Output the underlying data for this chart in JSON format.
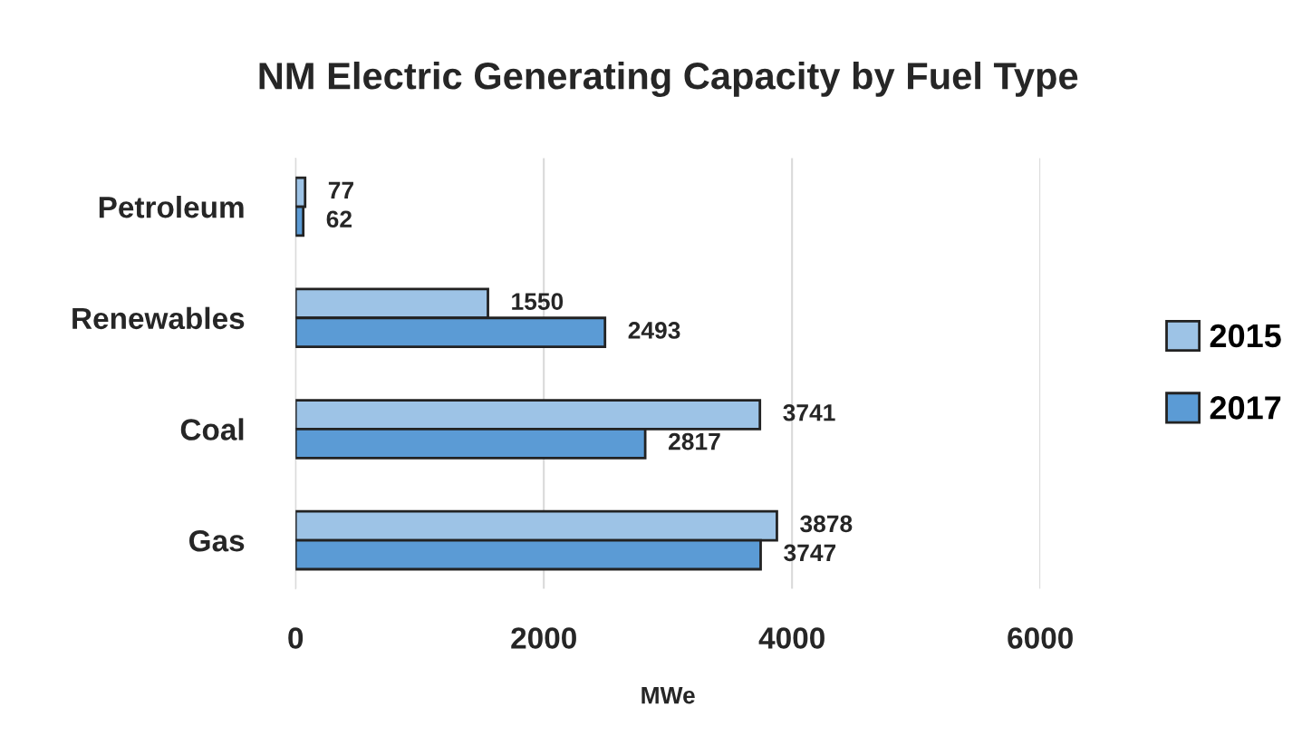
{
  "chart_data": {
    "type": "bar",
    "orientation": "horizontal",
    "title": "NM Electric Generating Capacity by Fuel Type",
    "xlabel": "MWe",
    "categories": [
      "Petroleum",
      "Renewables",
      "Coal",
      "Gas"
    ],
    "series": [
      {
        "name": "2015",
        "color": "#9dc3e6",
        "values": [
          77,
          1550,
          3741,
          3878
        ]
      },
      {
        "name": "2017",
        "color": "#5b9bd5",
        "values": [
          62,
          2493,
          2817,
          3747
        ]
      }
    ],
    "xlim": [
      0,
      6000
    ],
    "xticks": [
      0,
      2000,
      4000,
      6000
    ],
    "grid": "x",
    "legend": "right",
    "data_labels": true
  }
}
